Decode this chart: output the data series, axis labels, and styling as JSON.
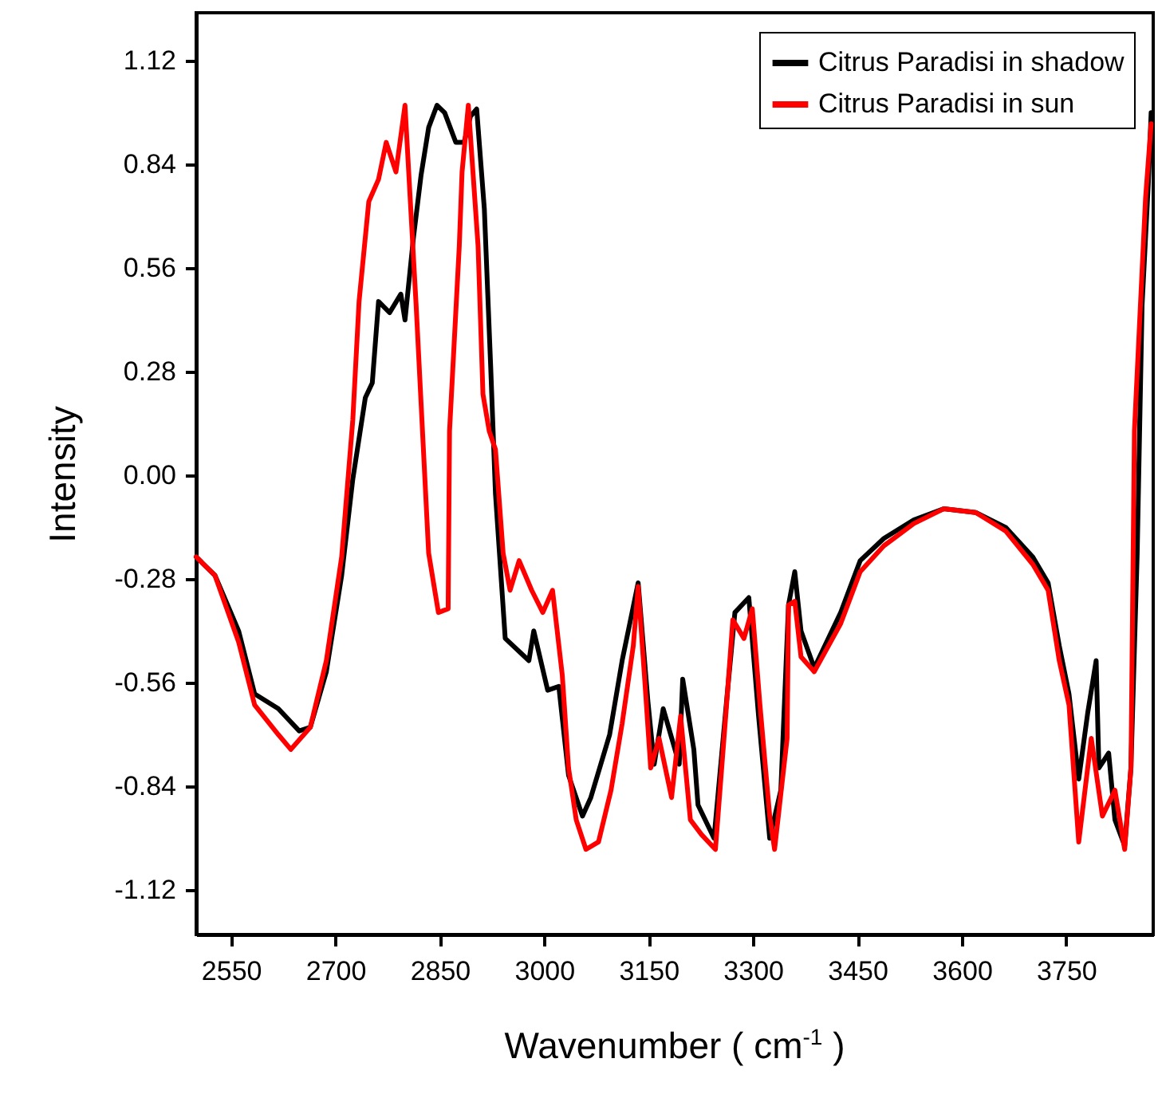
{
  "chart_data": {
    "type": "line",
    "xlabel": "Wavenumber ( cm$^{-1}$ )",
    "ylabel": "Intensity",
    "xlim": [
      2500,
      3875
    ],
    "xticks": [
      2550,
      2700,
      2850,
      3000,
      3150,
      3300,
      3450,
      3600,
      3750
    ],
    "ylim": [
      -1.24,
      1.25
    ],
    "yticks": [
      {
        "value": -1.12,
        "label": "-1.12"
      },
      {
        "value": -0.84,
        "label": "-0.84"
      },
      {
        "value": -0.56,
        "label": "-0.56"
      },
      {
        "value": -0.28,
        "label": "-0.28"
      },
      {
        "value": 0,
        "label": "0.00"
      },
      {
        "value": 0.28,
        "label": "0.28"
      },
      {
        "value": 0.56,
        "label": "0.56"
      },
      {
        "value": 0.84,
        "label": "0.84"
      },
      {
        "value": 1.12,
        "label": "1.12"
      }
    ],
    "legend": "top right",
    "grid": false,
    "series": [
      {
        "name": "Citrus Paradisi in shadow",
        "color": "#000000",
        "x": [
          2500,
          2527,
          2561,
          2584,
          2618,
          2648,
          2664,
          2687,
          2709,
          2725,
          2743,
          2753,
          2762,
          2778,
          2794,
          2800,
          2812,
          2823,
          2834,
          2846,
          2857,
          2873,
          2885,
          2894,
          2903,
          2914,
          2923,
          2930,
          2944,
          2978,
          2985,
          3005,
          3021,
          3035,
          3055,
          3067,
          3094,
          3112,
          3135,
          3149,
          3158,
          3171,
          3194,
          3199,
          3215,
          3221,
          3244,
          3262,
          3274,
          3294,
          3308,
          3324,
          3340,
          3351,
          3360,
          3369,
          3388,
          3426,
          3454,
          3488,
          3531,
          3574,
          3620,
          3663,
          3702,
          3724,
          3740,
          3754,
          3768,
          3781,
          3793,
          3797,
          3811,
          3820,
          3834,
          3843,
          3852,
          3859,
          3868,
          3872
        ],
        "values": [
          -0.22,
          -0.27,
          -0.42,
          -0.59,
          -0.63,
          -0.69,
          -0.68,
          -0.53,
          -0.27,
          -0.01,
          0.21,
          0.25,
          0.47,
          0.44,
          0.49,
          0.42,
          0.64,
          0.81,
          0.94,
          1.0,
          0.98,
          0.9,
          0.9,
          0.97,
          0.99,
          0.72,
          0.3,
          -0.05,
          -0.44,
          -0.5,
          -0.42,
          -0.58,
          -0.57,
          -0.81,
          -0.92,
          -0.87,
          -0.7,
          -0.5,
          -0.29,
          -0.61,
          -0.78,
          -0.63,
          -0.78,
          -0.55,
          -0.74,
          -0.89,
          -0.98,
          -0.61,
          -0.37,
          -0.33,
          -0.65,
          -0.98,
          -0.85,
          -0.35,
          -0.26,
          -0.42,
          -0.52,
          -0.37,
          -0.23,
          -0.17,
          -0.12,
          -0.09,
          -0.1,
          -0.14,
          -0.22,
          -0.29,
          -0.46,
          -0.59,
          -0.82,
          -0.64,
          -0.5,
          -0.79,
          -0.75,
          -0.93,
          -1.0,
          -0.79,
          -0.21,
          0.46,
          0.79,
          0.98
        ]
      },
      {
        "name": "Citrus Paradisi in sun",
        "color": "#ff0000",
        "x": [
          2500,
          2527,
          2561,
          2584,
          2618,
          2636,
          2664,
          2687,
          2709,
          2725,
          2734,
          2748,
          2762,
          2773,
          2787,
          2800,
          2816,
          2834,
          2848,
          2862,
          2864,
          2878,
          2882,
          2891,
          2905,
          2912,
          2921,
          2930,
          2941,
          2951,
          2964,
          2982,
          2998,
          3012,
          3026,
          3035,
          3046,
          3060,
          3078,
          3096,
          3112,
          3128,
          3135,
          3144,
          3153,
          3165,
          3183,
          3196,
          3210,
          3226,
          3246,
          3262,
          3271,
          3287,
          3299,
          3310,
          3324,
          3331,
          3349,
          3351,
          3360,
          3369,
          3388,
          3426,
          3454,
          3488,
          3531,
          3574,
          3620,
          3663,
          3702,
          3724,
          3740,
          3754,
          3768,
          3786,
          3802,
          3820,
          3834,
          3843,
          3848,
          3864,
          3872
        ],
        "values": [
          -0.22,
          -0.27,
          -0.45,
          -0.62,
          -0.7,
          -0.74,
          -0.68,
          -0.5,
          -0.22,
          0.15,
          0.47,
          0.74,
          0.8,
          0.9,
          0.82,
          1.0,
          0.46,
          -0.21,
          -0.37,
          -0.36,
          0.12,
          0.62,
          0.82,
          1.0,
          0.62,
          0.22,
          0.12,
          0.07,
          -0.21,
          -0.31,
          -0.23,
          -0.31,
          -0.37,
          -0.31,
          -0.54,
          -0.79,
          -0.93,
          -1.01,
          -0.99,
          -0.85,
          -0.67,
          -0.46,
          -0.3,
          -0.54,
          -0.79,
          -0.71,
          -0.87,
          -0.65,
          -0.93,
          -0.97,
          -1.01,
          -0.62,
          -0.39,
          -0.44,
          -0.36,
          -0.62,
          -0.92,
          -1.01,
          -0.71,
          -0.35,
          -0.34,
          -0.49,
          -0.53,
          -0.4,
          -0.26,
          -0.19,
          -0.13,
          -0.09,
          -0.1,
          -0.15,
          -0.24,
          -0.31,
          -0.5,
          -0.62,
          -0.99,
          -0.71,
          -0.92,
          -0.85,
          -1.01,
          -0.79,
          0.12,
          0.75,
          0.95
        ]
      }
    ]
  }
}
